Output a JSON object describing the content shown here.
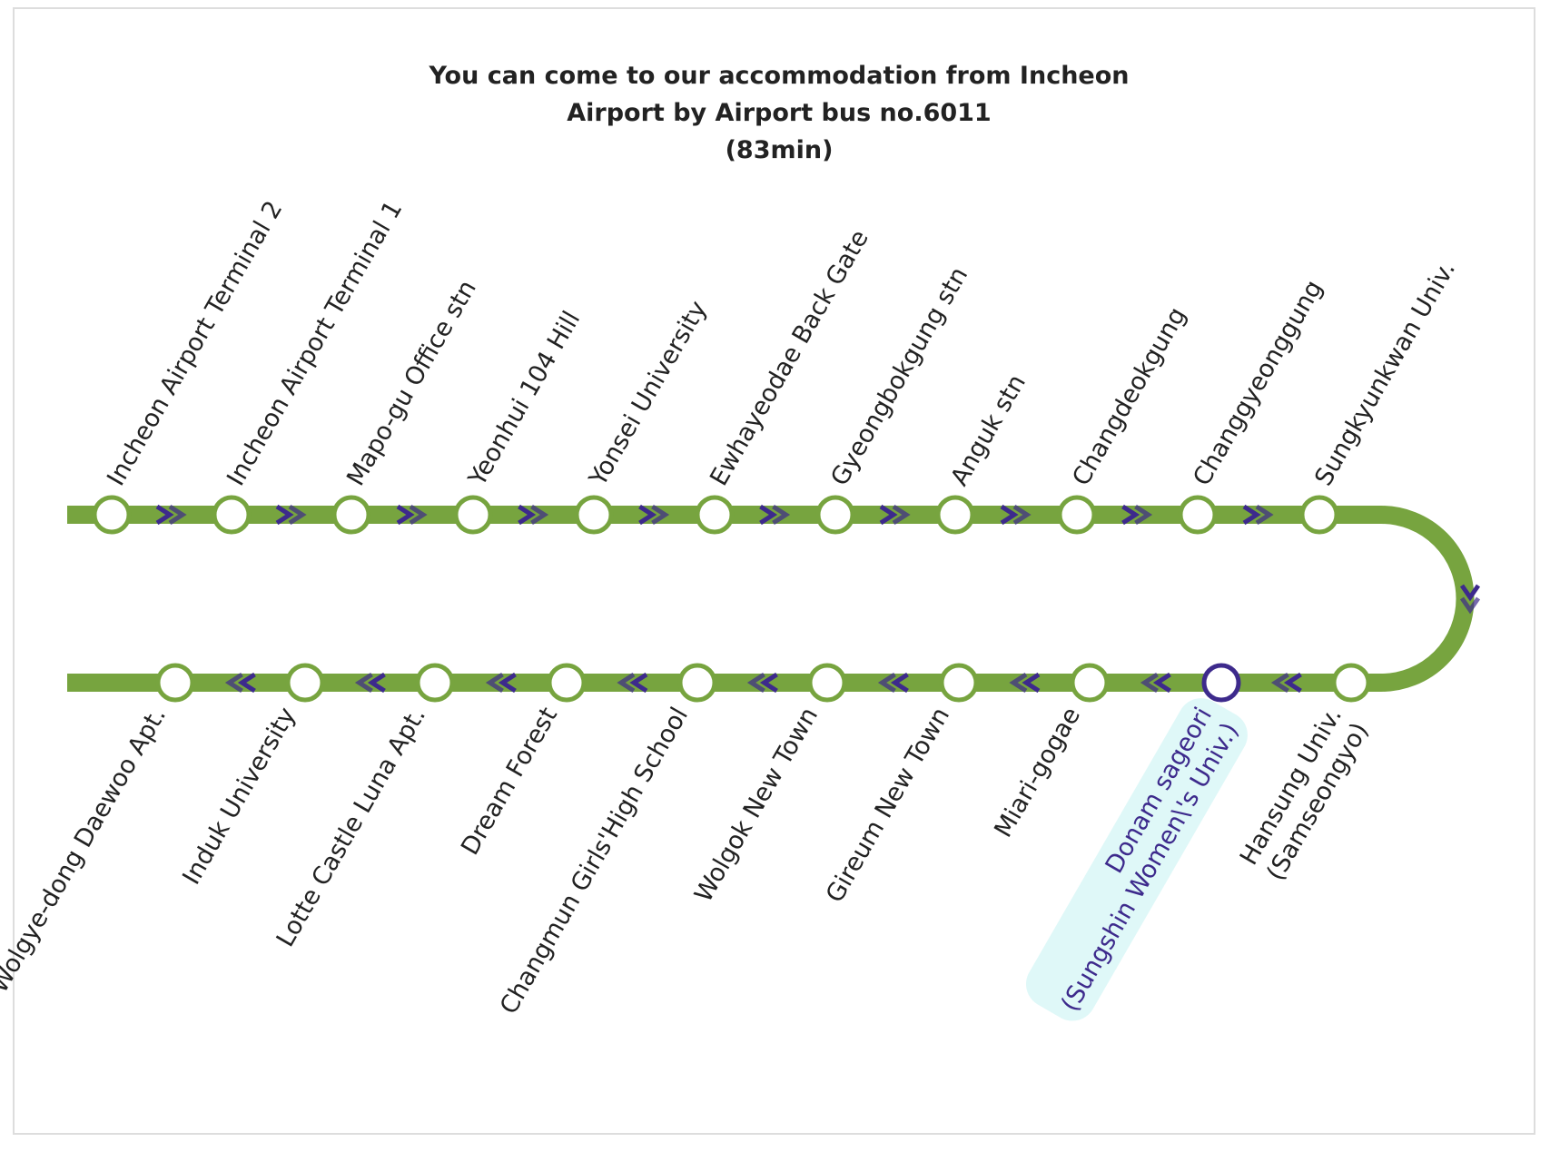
{
  "title": [
    "You can come to our accommodation from Incheon",
    "Airport by Airport bus no.6011",
    "(83min)"
  ],
  "colors": {
    "line": "#77a43f",
    "arrow": "#3d2a8c",
    "text": "#222222"
  },
  "top_stations": [
    {
      "lines": [
        "Incheon Airport Terminal 2"
      ]
    },
    {
      "lines": [
        "Incheon Airport Terminal 1"
      ]
    },
    {
      "lines": [
        "Mapo-gu Office stn"
      ]
    },
    {
      "lines": [
        "Yeonhui 104 Hill"
      ]
    },
    {
      "lines": [
        "Yonsei University"
      ]
    },
    {
      "lines": [
        "Ewhayeodae Back Gate"
      ]
    },
    {
      "lines": [
        "Gyeongbokgung stn"
      ]
    },
    {
      "lines": [
        "Anguk stn"
      ]
    },
    {
      "lines": [
        "Changdeokgung"
      ]
    },
    {
      "lines": [
        "Changgyeonggung"
      ]
    },
    {
      "lines": [
        "Sungkyunkwan Univ."
      ]
    }
  ],
  "bottom_stations": [
    {
      "lines": [
        "Hansung Univ.",
        "(Samseongyo)"
      ]
    },
    {
      "lines": [
        "Donam sageori",
        "(Sungshin Women\\'s Univ.)"
      ],
      "color": "#3d2a8c",
      "highlight": "#dff8f8"
    },
    {
      "lines": [
        "Miari-gogae"
      ]
    },
    {
      "lines": [
        "Gireum New Town"
      ]
    },
    {
      "lines": [
        "Wolgok New Town"
      ]
    },
    {
      "lines": [
        "Changmun Girls'High School"
      ]
    },
    {
      "lines": [
        "Dream Forest"
      ]
    },
    {
      "lines": [
        "Lotte Castle Luna Apt."
      ]
    },
    {
      "lines": [
        "Induk University"
      ]
    },
    {
      "lines": [
        "Wolgye-dong Daewoo Apt."
      ]
    }
  ]
}
